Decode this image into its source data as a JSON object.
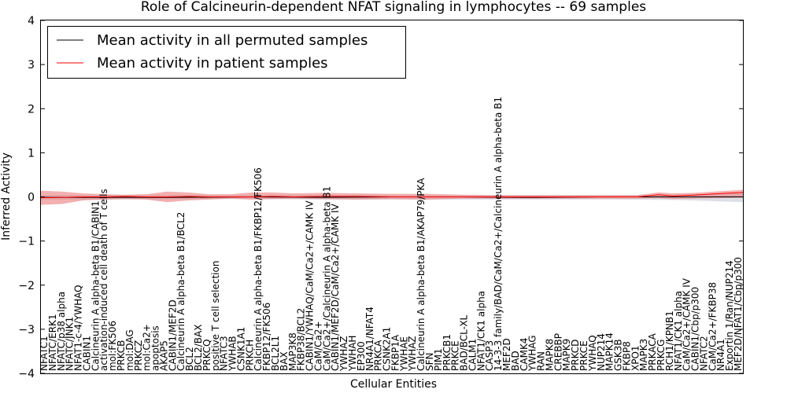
{
  "chart_data": {
    "type": "line",
    "title": "Role of Calcineurin-dependent NFAT signaling in lymphocytes -- 69 samples",
    "xlabel": "Cellular Entities",
    "ylabel": "Inferred Activity",
    "ylim": [
      -4,
      4
    ],
    "yticks": [
      -4,
      -3,
      -2,
      -1,
      0,
      1,
      2,
      3,
      4
    ],
    "legend": {
      "placement": "top-left",
      "entries": [
        {
          "label": "Mean activity in all permuted samples",
          "color": "#000000"
        },
        {
          "label": "Mean activity in patient samples",
          "color": "#ff0000"
        }
      ]
    },
    "categories": [
      "NFATC1",
      "NFATC/ERK1",
      "NFATC/p38 alpha",
      "NFATC/JNK1",
      "NFAT1-c-4/YWHAQ",
      "CABIN1",
      "Calcineurin A alpha-beta B1/CABIN1",
      "activation-induced cell death of T cells",
      "mol:FK506",
      "PRKCB",
      "mol:DAG",
      "PRKCZ",
      "mol:Ca2+",
      "apoptosis",
      "AKAP5",
      "CABIN1/MEF2D",
      "Calcineurin A alpha-beta B1/BCL2",
      "BCL2",
      "BCL2/BAX",
      "PRKCQ",
      "positive T cell selection",
      "NFATC3",
      "YWHAB",
      "CSNK1A1",
      "PRKCH",
      "Calcineurin A alpha-beta B1/FKBP12/FK506",
      "FKBP12/FK506",
      "BCL2L1",
      "BAX",
      "MAP3K8",
      "FKBP38/BCL2",
      "CABIN1/YWHAQ/CaM/Ca2+/CAMK IV",
      "CaM/Ca2+",
      "CaM/Ca2+/Calcineurin A alpha-beta B1",
      "CABIN1/MEF2D/CaM/Ca2+/CAMK IV",
      "YWHAZ",
      "YWHAH",
      "EP300",
      "NR4A1/NFAT4",
      "PRKCA",
      "CSNK2A1",
      "FKBP1A",
      "YWHAE",
      "YWHAZ",
      "Calcineurin A alpha-beta B1/AKAP79/PKA",
      "SFN",
      "PIM1",
      "PRKCB1",
      "PRKCE",
      "BAD/BCL-XL",
      "CALM1",
      "NFAT1/CK1 alpha",
      "CASP3",
      "14-3-3 family/BAD/CaM/Ca2+/Calcineurin A alpha-beta B1",
      "MEF2D",
      "BAD",
      "CAMK4",
      "YWHAG",
      "RAN",
      "MAPK8",
      "CREBBP",
      "MAPK9",
      "PRKCD",
      "PRKCE",
      "YWHAQ",
      "NUP214",
      "MAPK14",
      "GSK3B",
      "FKBP8",
      "XPO1",
      "MAPK3",
      "PRKACA",
      "PRKCG",
      "RCH1/KPNB1",
      "NFAT1/CK1 alpha",
      "CaM/Ca2+/CAMK IV",
      "CABIN1/Cbp/p300",
      "NFATC2",
      "CaM/Ca2+/FKBP38",
      "NR4A1",
      "Exportin 1/Ran/NUP214",
      "MEF2D/NFAT1/Cbp/p300"
    ],
    "x_range": [
      0,
      100
    ],
    "permuted_mean": {
      "x": [
        0,
        10,
        20,
        30,
        40,
        50,
        60,
        70,
        80,
        90,
        95,
        100
      ],
      "y": [
        -0.01,
        -0.01,
        -0.01,
        0.0,
        -0.01,
        0.0,
        0.0,
        -0.01,
        0.0,
        0.0,
        0.0,
        0.0
      ],
      "band_low": [
        -0.06,
        -0.06,
        -0.05,
        -0.05,
        -0.06,
        -0.06,
        -0.06,
        -0.06,
        -0.06,
        -0.07,
        -0.09,
        -0.12
      ],
      "band_high": [
        0.04,
        0.04,
        0.04,
        0.04,
        0.04,
        0.04,
        0.04,
        0.04,
        0.04,
        0.05,
        0.07,
        0.08
      ]
    },
    "patient_mean": {
      "x": [
        0,
        3,
        6,
        9,
        12,
        15,
        18,
        21,
        24,
        27,
        30,
        33,
        36,
        40,
        45,
        50,
        55,
        60,
        65,
        70,
        75,
        80,
        85,
        88,
        90,
        93,
        96,
        100
      ],
      "y": [
        -0.02,
        -0.01,
        0.0,
        0.0,
        0.01,
        0.0,
        0.0,
        0.01,
        0.0,
        0.0,
        0.0,
        0.01,
        0.0,
        0.01,
        0.01,
        0.0,
        0.0,
        0.0,
        0.0,
        0.0,
        0.0,
        0.0,
        0.0,
        0.05,
        0.02,
        0.04,
        0.07,
        0.1
      ],
      "band_low": [
        -0.18,
        -0.16,
        -0.08,
        -0.06,
        -0.05,
        -0.06,
        -0.12,
        -0.08,
        -0.06,
        -0.04,
        -0.06,
        -0.05,
        -0.04,
        -0.05,
        -0.06,
        -0.05,
        -0.06,
        -0.04,
        -0.04,
        -0.04,
        -0.04,
        -0.04,
        -0.04,
        -0.03,
        -0.05,
        -0.04,
        -0.03,
        -0.02
      ],
      "band_high": [
        0.14,
        0.12,
        0.08,
        0.06,
        0.05,
        0.06,
        0.12,
        0.1,
        0.06,
        0.06,
        0.1,
        0.1,
        0.08,
        0.09,
        0.08,
        0.07,
        0.07,
        0.05,
        0.04,
        0.04,
        0.04,
        0.04,
        0.04,
        0.1,
        0.08,
        0.09,
        0.12,
        0.16
      ]
    }
  }
}
